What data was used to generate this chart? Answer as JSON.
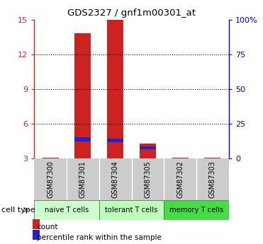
{
  "title": "GDS2327 / gnf1m00301_at",
  "samples": [
    "GSM87300",
    "GSM87301",
    "GSM87304",
    "GSM87305",
    "GSM87302",
    "GSM87303"
  ],
  "red_values": [
    3.05,
    13.8,
    15.0,
    4.3,
    3.05,
    3.05
  ],
  "blue_values": [
    0.0,
    0.35,
    0.3,
    0.28,
    0.0,
    0.0
  ],
  "blue_bottom": [
    0.0,
    4.5,
    4.4,
    3.8,
    0.0,
    0.0
  ],
  "baseline": 3.0,
  "ylim_left": [
    3,
    15
  ],
  "ylim_right": [
    0,
    100
  ],
  "left_ticks": [
    3,
    6,
    9,
    12,
    15
  ],
  "right_ticks": [
    0,
    25,
    50,
    75,
    100
  ],
  "right_tick_labels": [
    "0",
    "25",
    "50",
    "75",
    "100%"
  ],
  "left_color": "#cc2222",
  "right_color": "#0000cc",
  "bar_width": 0.5,
  "cell_groups": [
    {
      "label": "naive T cells",
      "indices": [
        0,
        1
      ],
      "color": "#ccffcc"
    },
    {
      "label": "tolerant T cells",
      "indices": [
        2,
        3
      ],
      "color": "#bbffbb"
    },
    {
      "label": "memory T cells",
      "indices": [
        4,
        5
      ],
      "color": "#44dd44"
    }
  ],
  "legend_red": "count",
  "legend_blue": "percentile rank within the sample",
  "cell_type_label": "cell type",
  "bg_color": "#ffffff",
  "plot_bg": "#ffffff",
  "sample_area_color": "#cccccc"
}
